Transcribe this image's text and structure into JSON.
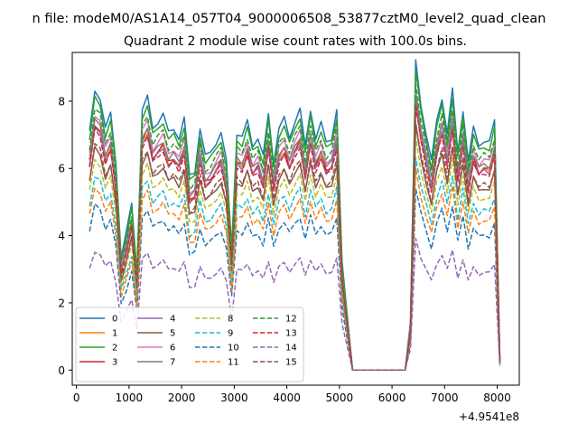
{
  "figure": {
    "suptitle": "n file: modeM0/AS1A14_057T04_9000006508_53877cztM0_level2_quad_clean"
  },
  "chart_data": {
    "type": "line",
    "title": "Quadrant 2 module wise count rates with 100.0s bins.",
    "xlabel": "",
    "ylabel": "",
    "offset_text": "+4.9541e8",
    "xlim": [
      -80,
      8420
    ],
    "ylim": [
      -0.45,
      9.45
    ],
    "xticks": [
      0,
      1000,
      2000,
      3000,
      4000,
      5000,
      6000,
      7000,
      8000
    ],
    "yticks": [
      0,
      2,
      4,
      6,
      8
    ],
    "grid": false,
    "legend_position": "lower-left",
    "legend_columns": 4,
    "x": [
      250,
      350,
      450,
      550,
      650,
      750,
      850,
      950,
      1050,
      1150,
      1250,
      1350,
      1450,
      1550,
      1650,
      1750,
      1850,
      1950,
      2050,
      2150,
      2250,
      2350,
      2450,
      2550,
      2650,
      2750,
      2850,
      2950,
      3050,
      3150,
      3250,
      3350,
      3450,
      3550,
      3650,
      3750,
      3850,
      3950,
      4050,
      4150,
      4250,
      4350,
      4450,
      4550,
      4650,
      4750,
      4850,
      4950,
      5050,
      5250,
      6250,
      6350,
      6450,
      6550,
      6650,
      6750,
      6850,
      6950,
      7050,
      7150,
      7250,
      7350,
      7450,
      7550,
      7650,
      7750,
      7850,
      7950,
      8050
    ],
    "series": [
      {
        "name": "0",
        "color": "#1f77b4",
        "dashed": false,
        "base": 7.05,
        "scale": 1.08
      },
      {
        "name": "1",
        "color": "#ff7f0e",
        "dashed": false,
        "base": 6.15,
        "scale": 0.97
      },
      {
        "name": "2",
        "color": "#2ca02c",
        "dashed": false,
        "base": 6.85,
        "scale": 1.05
      },
      {
        "name": "3",
        "color": "#d62728",
        "dashed": false,
        "base": 6.2,
        "scale": 0.98
      },
      {
        "name": "4",
        "color": "#9467bd",
        "dashed": false,
        "base": 6.1,
        "scale": 0.97
      },
      {
        "name": "5",
        "color": "#8c564b",
        "dashed": false,
        "base": 5.6,
        "scale": 0.93
      },
      {
        "name": "6",
        "color": "#e377c2",
        "dashed": false,
        "base": 6.45,
        "scale": 1.0
      },
      {
        "name": "7",
        "color": "#7f7f7f",
        "dashed": false,
        "base": 6.3,
        "scale": 0.99
      },
      {
        "name": "8",
        "color": "#bcbd22",
        "dashed": true,
        "base": 5.3,
        "scale": 0.9
      },
      {
        "name": "9",
        "color": "#17becf",
        "dashed": true,
        "base": 4.9,
        "scale": 0.87
      },
      {
        "name": "10",
        "color": "#1f77b4",
        "dashed": true,
        "base": 4.15,
        "scale": 0.8
      },
      {
        "name": "11",
        "color": "#ff7f0e",
        "dashed": true,
        "base": 4.6,
        "scale": 0.85
      },
      {
        "name": "12",
        "color": "#2ca02c",
        "dashed": true,
        "base": 6.6,
        "scale": 1.02
      },
      {
        "name": "13",
        "color": "#d62728",
        "dashed": true,
        "base": 6.05,
        "scale": 0.97
      },
      {
        "name": "14",
        "color": "#9467bd",
        "dashed": true,
        "base": 3.0,
        "scale": 0.62
      },
      {
        "name": "15",
        "color": "#8c564b",
        "dashed": true,
        "base": 5.7,
        "scale": 0.94
      }
    ],
    "profile": [
      1.0,
      1.18,
      1.15,
      1.02,
      1.08,
      0.88,
      0.48,
      0.58,
      0.7,
      0.42,
      1.1,
      1.15,
      1.02,
      1.05,
      1.08,
      1.0,
      1.02,
      0.98,
      1.06,
      0.82,
      0.84,
      1.02,
      0.9,
      0.92,
      0.96,
      1.0,
      0.88,
      0.52,
      1.0,
      0.98,
      1.05,
      0.95,
      0.98,
      0.9,
      1.08,
      0.88,
      1.02,
      1.06,
      0.98,
      1.05,
      1.1,
      0.94,
      1.1,
      0.98,
      1.04,
      0.96,
      0.98,
      1.1,
      0.45,
      0.0,
      0.0,
      0.2,
      1.3,
      1.12,
      1.0,
      0.88,
      1.05,
      1.15,
      1.0,
      1.18,
      0.92,
      1.1,
      0.88,
      1.02,
      0.95,
      0.97,
      0.96,
      1.05,
      0.04
    ]
  }
}
